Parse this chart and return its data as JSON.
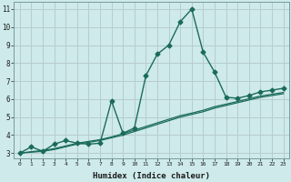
{
  "xlabel": "Humidex (Indice chaleur)",
  "ylabel": "",
  "bg_color": "#ceeaea",
  "grid_color": "#b8cccc",
  "line_color": "#1a6b5a",
  "xlim": [
    -0.5,
    23.5
  ],
  "ylim": [
    2.7,
    11.4
  ],
  "yticks": [
    3,
    4,
    5,
    6,
    7,
    8,
    9,
    10,
    11
  ],
  "xticks": [
    0,
    1,
    2,
    3,
    4,
    5,
    6,
    7,
    8,
    9,
    10,
    11,
    12,
    13,
    14,
    15,
    16,
    17,
    18,
    19,
    20,
    21,
    22,
    23
  ],
  "series": [
    {
      "x": [
        0,
        1,
        2,
        3,
        4,
        5,
        6,
        7,
        8,
        9,
        10,
        11,
        12,
        13,
        14,
        15,
        16,
        17,
        18,
        19,
        20,
        21,
        22,
        23
      ],
      "y": [
        3.0,
        3.35,
        3.1,
        3.5,
        3.7,
        3.55,
        3.5,
        3.55,
        5.9,
        4.1,
        4.4,
        7.3,
        8.5,
        9.0,
        10.3,
        11.0,
        8.6,
        7.5,
        6.1,
        6.05,
        6.2,
        6.4,
        6.5,
        6.6
      ],
      "marker": "D",
      "markersize": 2.5,
      "linewidth": 1.0
    },
    {
      "x": [
        0,
        1,
        2,
        3,
        4,
        5,
        6,
        7,
        8,
        9,
        10,
        11,
        12,
        13,
        14,
        15,
        16,
        17,
        18,
        19,
        20,
        21,
        22,
        23
      ],
      "y": [
        3.0,
        3.05,
        3.1,
        3.2,
        3.35,
        3.5,
        3.6,
        3.7,
        3.85,
        4.0,
        4.2,
        4.4,
        4.6,
        4.8,
        5.0,
        5.15,
        5.3,
        5.5,
        5.65,
        5.8,
        5.95,
        6.1,
        6.2,
        6.3
      ],
      "marker": null,
      "markersize": 0,
      "linewidth": 0.9
    },
    {
      "x": [
        0,
        1,
        2,
        3,
        4,
        5,
        6,
        7,
        8,
        9,
        10,
        11,
        12,
        13,
        14,
        15,
        16,
        17,
        18,
        19,
        20,
        21,
        22,
        23
      ],
      "y": [
        3.0,
        3.08,
        3.15,
        3.25,
        3.4,
        3.55,
        3.65,
        3.75,
        3.9,
        4.08,
        4.28,
        4.48,
        4.68,
        4.88,
        5.08,
        5.22,
        5.38,
        5.58,
        5.72,
        5.87,
        6.02,
        6.17,
        6.27,
        6.37
      ],
      "marker": null,
      "markersize": 0,
      "linewidth": 0.9
    }
  ]
}
